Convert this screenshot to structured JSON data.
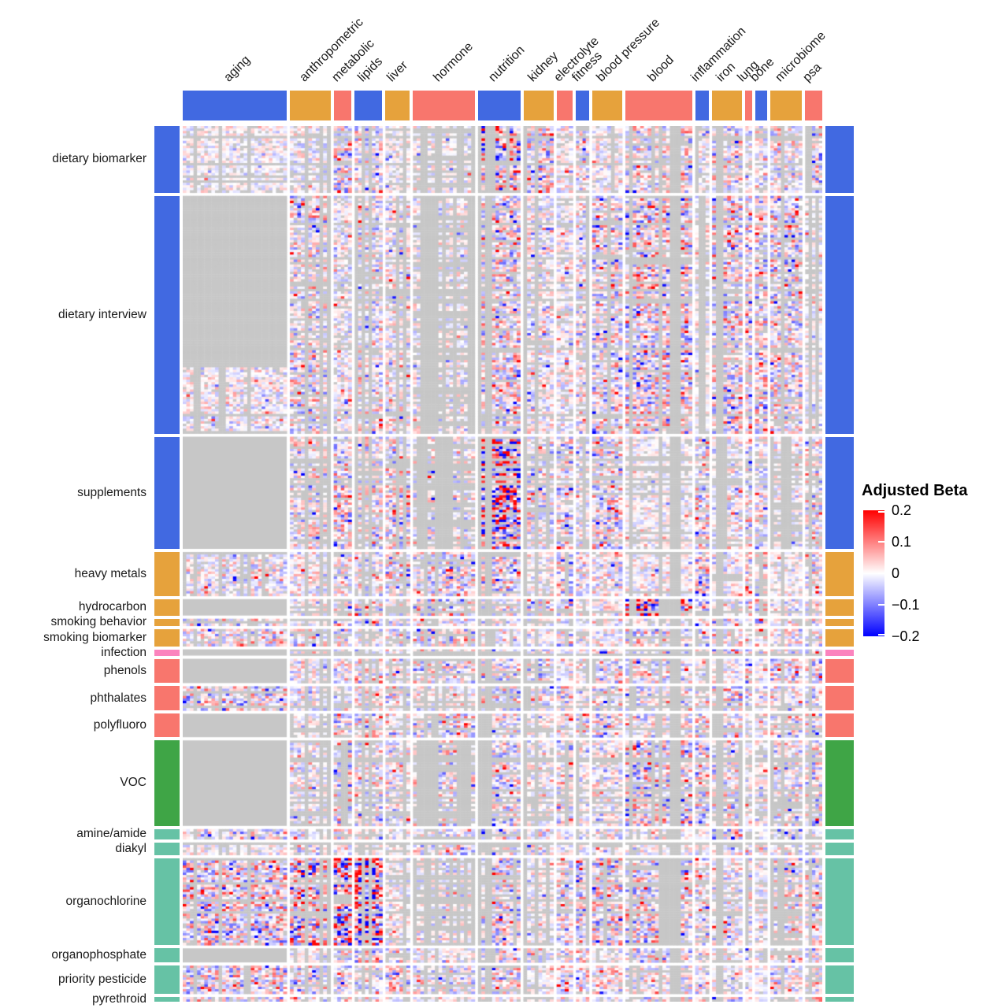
{
  "chart_data": {
    "type": "heatmap",
    "title": "",
    "value_label": "Adjusted Beta",
    "value_range": [
      -0.2,
      0.2
    ],
    "missing_color": "#C7C7C7",
    "legend": {
      "title": "Adjusted Beta",
      "ticks": [
        "0.2",
        "0.1",
        "0",
        "−0.1",
        "−0.2"
      ],
      "max_color": "#FF0000",
      "mid_color": "#FFFFFF",
      "min_color": "#0000FF",
      "position": "right"
    },
    "annotation_colors": {
      "blue": "#4169E1",
      "gold": "#E6A23C",
      "salmon": "#F8766D",
      "pink": "#FB84BE",
      "green": "#3FA546",
      "teal": "#66C2A5"
    },
    "row_groups": [
      {
        "label": "dietary biomarker",
        "color": "#4169E1",
        "size": 85
      },
      {
        "label": "dietary interview",
        "color": "#4169E1",
        "size": 303
      },
      {
        "label": "supplements",
        "color": "#4169E1",
        "size": 143
      },
      {
        "label": "heavy metals",
        "color": "#E6A23C",
        "size": 56
      },
      {
        "label": "hydrocarbon",
        "color": "#E6A23C",
        "size": 21
      },
      {
        "label": "smoking behavior",
        "color": "#E6A23C",
        "size": 9
      },
      {
        "label": "smoking biomarker",
        "color": "#E6A23C",
        "size": 22
      },
      {
        "label": "infection",
        "color": "#FB84BE",
        "size": 8
      },
      {
        "label": "phenols",
        "color": "#F8766D",
        "size": 31
      },
      {
        "label": "phthalates",
        "color": "#F8766D",
        "size": 31
      },
      {
        "label": "polyfluoro",
        "color": "#F8766D",
        "size": 30
      },
      {
        "label": "VOC",
        "color": "#3FA546",
        "size": 109
      },
      {
        "label": "amine/amide",
        "color": "#66C2A5",
        "size": 13
      },
      {
        "label": "diakyl",
        "color": "#66C2A5",
        "size": 16
      },
      {
        "label": "organochlorine",
        "color": "#66C2A5",
        "size": 111
      },
      {
        "label": "organophosphate",
        "color": "#66C2A5",
        "size": 18
      },
      {
        "label": "priority pesticide",
        "color": "#66C2A5",
        "size": 36
      },
      {
        "label": "pyrethroid",
        "color": "#66C2A5",
        "size": 6
      }
    ],
    "col_groups": [
      {
        "label": "aging",
        "color": "#4169E1",
        "size": 128
      },
      {
        "label": "anthropometric",
        "color": "#E6A23C",
        "size": 50
      },
      {
        "label": "metabolic",
        "color": "#F8766D",
        "size": 22
      },
      {
        "label": "lipids",
        "color": "#4169E1",
        "size": 34
      },
      {
        "label": "liver",
        "color": "#E6A23C",
        "size": 30
      },
      {
        "label": "hormone",
        "color": "#F8766D",
        "size": 76
      },
      {
        "label": "nutrition",
        "color": "#4169E1",
        "size": 52
      },
      {
        "label": "kidney",
        "color": "#E6A23C",
        "size": 37
      },
      {
        "label": "electrolyte",
        "color": "#F8766D",
        "size": 20
      },
      {
        "label": "fitness",
        "color": "#4169E1",
        "size": 16
      },
      {
        "label": "blood pressure",
        "color": "#E6A23C",
        "size": 37
      },
      {
        "label": "blood",
        "color": "#F8766D",
        "size": 82
      },
      {
        "label": "inflammation",
        "color": "#4169E1",
        "size": 17
      },
      {
        "label": "iron",
        "color": "#E6A23C",
        "size": 37
      },
      {
        "label": "lung",
        "color": "#F8766D",
        "size": 8
      },
      {
        "label": "bone",
        "color": "#4169E1",
        "size": 15
      },
      {
        "label": "microbiome",
        "color": "#E6A23C",
        "size": 39
      },
      {
        "label": "psa",
        "color": "#F8766D",
        "size": 21
      }
    ],
    "missing_blocks": [
      [
        "supplements",
        "aging"
      ],
      [
        "phenols",
        "aging"
      ],
      [
        "polyfluoro",
        "aging"
      ],
      [
        "VOC",
        "aging"
      ],
      [
        "infection",
        "aging"
      ],
      [
        "hydrocarbon",
        "aging"
      ],
      [
        "organophosphate",
        "aging"
      ]
    ],
    "partial_missing": [
      {
        "row": "dietary interview",
        "col": "aging",
        "top_fraction": 0.72
      }
    ],
    "sparse_blocks": [
      [
        "dietary biomarker",
        "hormone"
      ],
      [
        "dietary interview",
        "hormone"
      ],
      [
        "supplements",
        "hormone"
      ],
      [
        "VOC",
        "hormone"
      ],
      [
        "organochlorine",
        "hormone"
      ],
      [
        "supplements",
        "microbiome"
      ],
      [
        "organochlorine",
        "microbiome"
      ]
    ],
    "hot_blocks": [
      [
        "dietary biomarker",
        "nutrition"
      ],
      [
        "dietary interview",
        "nutrition"
      ],
      [
        "supplements",
        "nutrition"
      ],
      [
        "dietary biomarker",
        "metabolic"
      ],
      [
        "organochlorine",
        "lipids"
      ],
      [
        "organochlorine",
        "metabolic"
      ],
      [
        "organochlorine",
        "anthropometric"
      ],
      [
        "VOC",
        "blood"
      ],
      [
        "organochlorine",
        "blood"
      ],
      [
        "hydrocarbon",
        "blood"
      ]
    ]
  }
}
